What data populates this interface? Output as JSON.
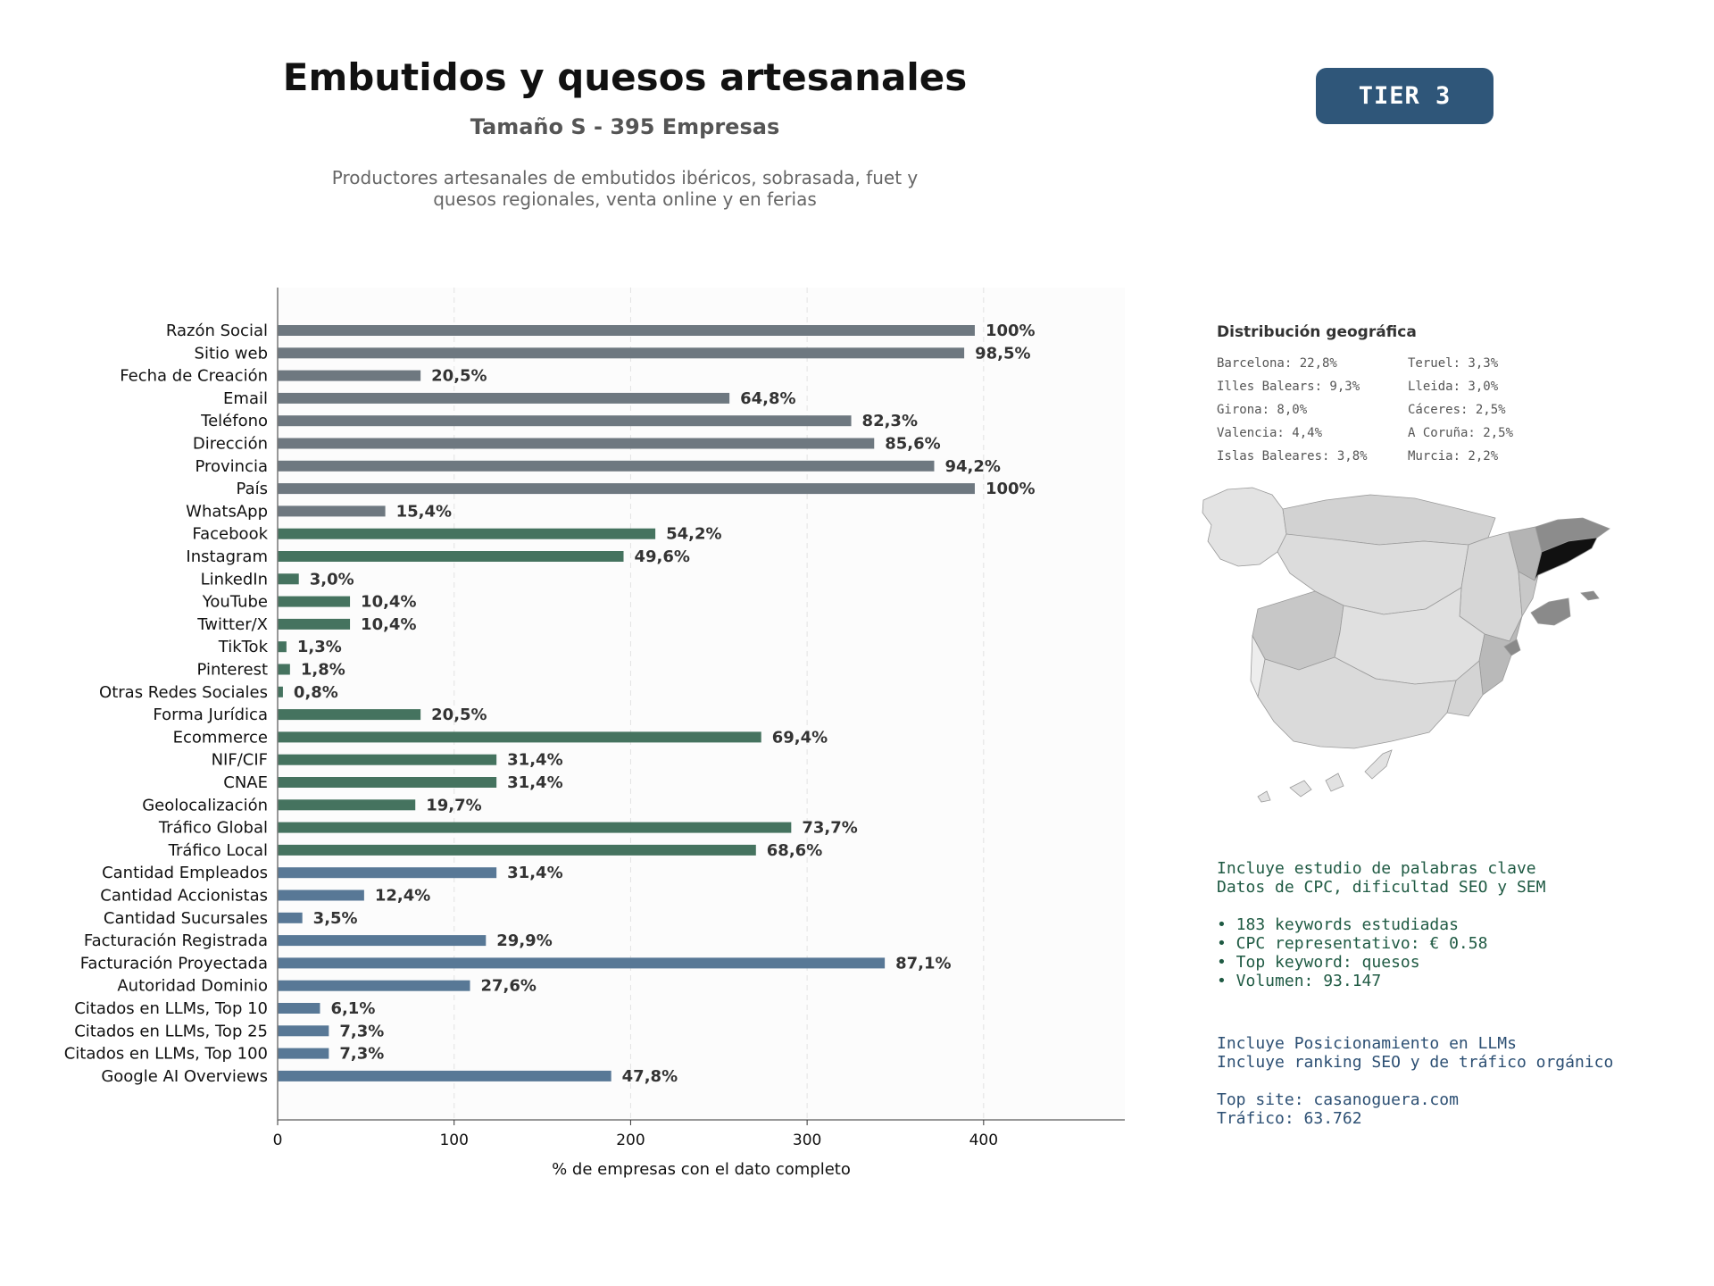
{
  "header": {
    "title": "Embutidos y quesos artesanales",
    "subtitle": "Tamaño S - 395 Empresas",
    "description_line1": "Productores artesanales de embutidos ibéricos, sobrasada, fuet y",
    "description_line2": "quesos regionales, venta online y en ferias",
    "tier_label": "TIER 3"
  },
  "chart_data": {
    "type": "bar",
    "orientation": "horizontal",
    "xlabel": "% de empresas con el dato completo",
    "xlim": [
      0,
      480
    ],
    "xticks": [
      0,
      100,
      200,
      300,
      400
    ],
    "grid": "vertical dashed",
    "categories": [
      "Razón Social",
      "Sitio web",
      "Fecha de Creación",
      "Email",
      "Teléfono",
      "Dirección",
      "Provincia",
      "País",
      "WhatsApp",
      "Facebook",
      "Instagram",
      "LinkedIn",
      "YouTube",
      "Twitter/X",
      "TikTok",
      "Pinterest",
      "Otras Redes Sociales",
      "Forma Jurídica",
      "Ecommerce",
      "NIF/CIF",
      "CNAE",
      "Geolocalización",
      "Tráfico Global",
      "Tráfico Local",
      "Cantidad Empleados",
      "Cantidad Accionistas",
      "Cantidad Sucursales",
      "Facturación Registrada",
      "Facturación Proyectada",
      "Autoridad Dominio",
      "Citados en LLMs, Top 10",
      "Citados en LLMs, Top 25",
      "Citados en LLMs, Top 100",
      "Google AI Overviews"
    ],
    "values": [
      395,
      389,
      81,
      256,
      325,
      338,
      372,
      395,
      61,
      214,
      196,
      12,
      41,
      41,
      5,
      7,
      3,
      81,
      274,
      124,
      124,
      78,
      291,
      271,
      124,
      49,
      14,
      118,
      344,
      109,
      24,
      29,
      29,
      189
    ],
    "value_labels": [
      "100%",
      "98,5%",
      "20,5%",
      "64,8%",
      "82,3%",
      "85,6%",
      "94,2%",
      "100%",
      "15,4%",
      "54,2%",
      "49,6%",
      "3,0%",
      "10,4%",
      "10,4%",
      "1,3%",
      "1,8%",
      "0,8%",
      "20,5%",
      "69,4%",
      "31,4%",
      "31,4%",
      "19,7%",
      "73,7%",
      "68,6%",
      "31,4%",
      "12,4%",
      "3,5%",
      "29,9%",
      "87,1%",
      "27,6%",
      "6,1%",
      "7,3%",
      "7,3%",
      "47,8%"
    ],
    "groups": [
      "gray",
      "gray",
      "gray",
      "gray",
      "gray",
      "gray",
      "gray",
      "gray",
      "gray",
      "green",
      "green",
      "green",
      "green",
      "green",
      "green",
      "green",
      "green",
      "green",
      "green",
      "green",
      "green",
      "green",
      "green",
      "green",
      "blue",
      "blue",
      "blue",
      "blue",
      "blue",
      "blue",
      "blue",
      "blue",
      "blue",
      "blue"
    ],
    "colors": {
      "gray": "#6e7880",
      "green": "#45735f",
      "blue": "#587896"
    }
  },
  "geo": {
    "title": "Distribución geográfica",
    "left": [
      "Barcelona: 22,8%",
      "Illes Balears: 9,3%",
      "Girona: 8,0%",
      "Valencia: 4,4%",
      "Islas Baleares: 3,8%"
    ],
    "right": [
      "Teruel: 3,3%",
      "Lleida: 3,0%",
      "Cáceres: 2,5%",
      "A Coruña: 2,5%",
      "Murcia: 2,2%"
    ]
  },
  "seo": {
    "line1": "Incluye estudio de palabras clave",
    "line2": "Datos de CPC, dificultad SEO y SEM",
    "bullets": [
      "• 183 keywords estudiadas",
      "• CPC representativo: € 0.58",
      "• Top keyword: quesos",
      "• Volumen: 93.147"
    ]
  },
  "llm": {
    "line1": "Incluye Posicionamiento en LLMs",
    "line2": "Incluye ranking SEO y de tráfico orgánico",
    "top_site": "Top site: casanoguera.com",
    "traffic": "Tráfico: 63.762"
  }
}
